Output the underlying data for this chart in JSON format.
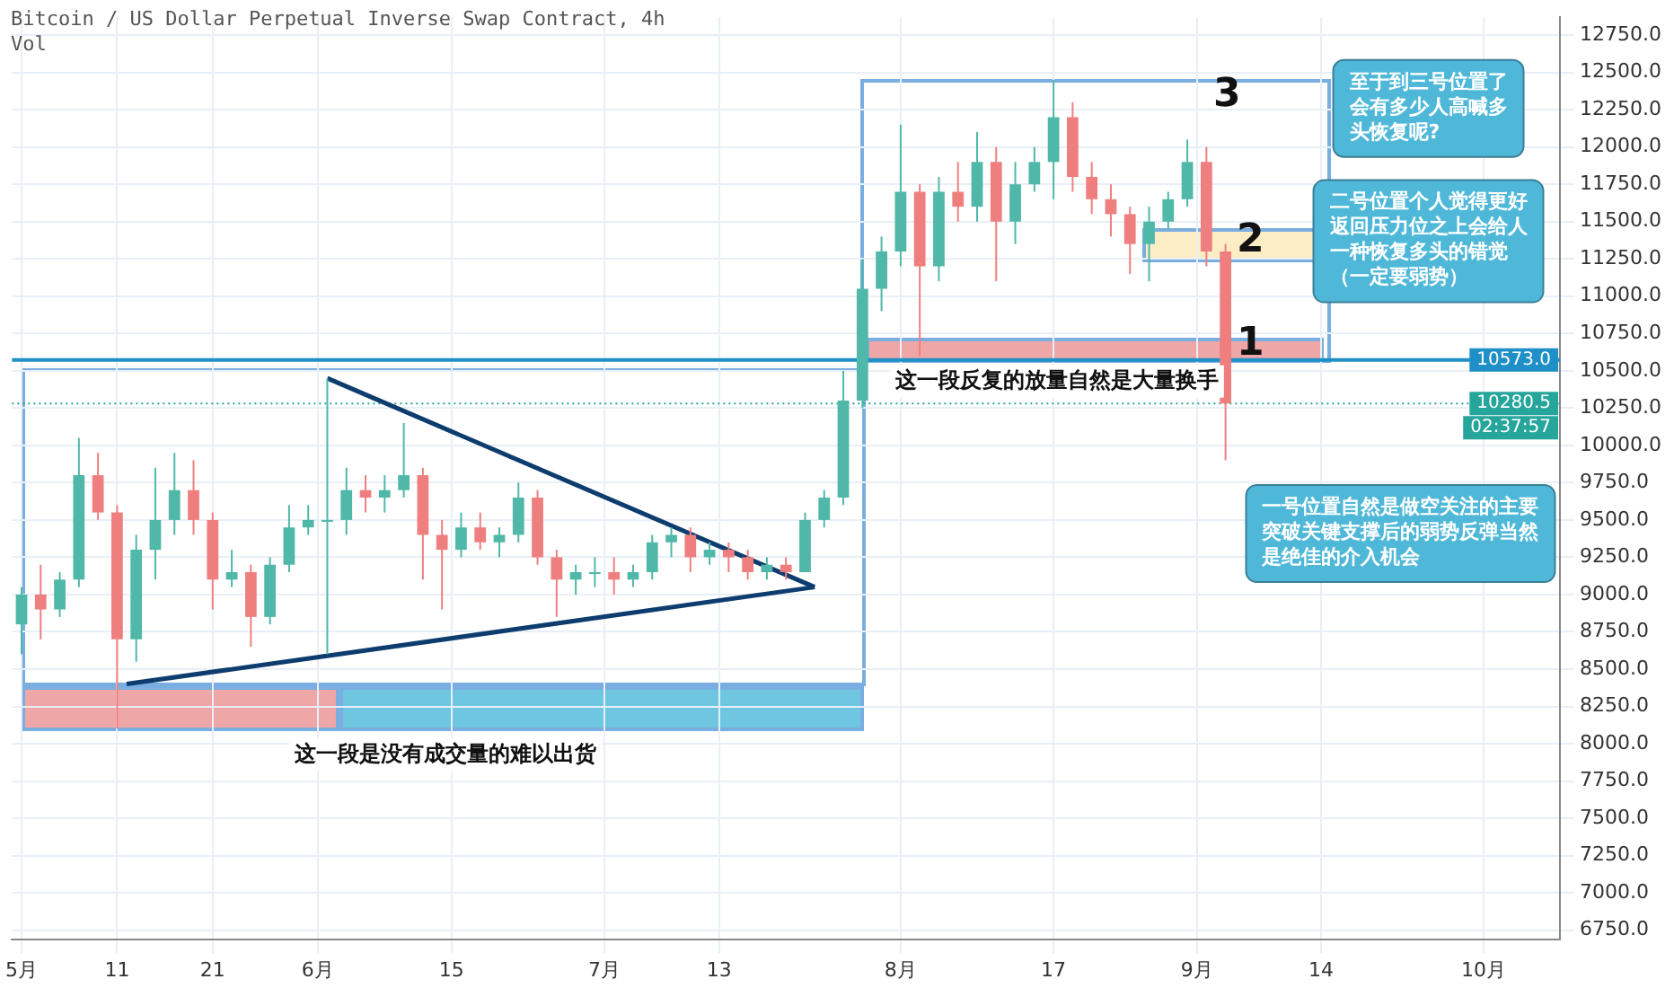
{
  "chart_data": {
    "type": "candlestick",
    "title": "Bitcoin / US Dollar Perpetual Inverse Swap Contract, 4h",
    "x": [
      "--05-01",
      "--05-03",
      "--05-05",
      "--05-07",
      "--05-09",
      "--05-11",
      "--05-13",
      "--05-15",
      "--05-17",
      "--05-19",
      "--05-21",
      "--05-23",
      "--05-25",
      "--05-27",
      "--05-29",
      "--05-31",
      "--06-02",
      "--06-04",
      "--06-06",
      "--06-08",
      "--06-10",
      "--06-12",
      "--06-14",
      "--06-16",
      "--06-18",
      "--06-20",
      "--06-22",
      "--06-24",
      "--06-26",
      "--06-28",
      "--06-30",
      "--07-02",
      "--07-04",
      "--07-06",
      "--07-08",
      "--07-10",
      "--07-12",
      "--07-14",
      "--07-16",
      "--07-18",
      "--07-20",
      "--07-22",
      "--07-24",
      "--07-26",
      "--07-28",
      "--07-30",
      "--08-01",
      "--08-03",
      "--08-05",
      "--08-07",
      "--08-09",
      "--08-11",
      "--08-13",
      "--08-15",
      "--08-17",
      "--08-19",
      "--08-21",
      "--08-23",
      "--08-25",
      "--08-27",
      "--08-29",
      "--08-31",
      "--09-02",
      "--09-04"
    ],
    "ohlc": [
      [
        8800,
        9050,
        8600,
        9000
      ],
      [
        9000,
        9200,
        8700,
        8900
      ],
      [
        8900,
        9150,
        8850,
        9100
      ],
      [
        9100,
        10050,
        9050,
        9800
      ],
      [
        9800,
        9950,
        9500,
        9550
      ],
      [
        9550,
        9600,
        8100,
        8700
      ],
      [
        8700,
        9400,
        8550,
        9300
      ],
      [
        9300,
        9850,
        9100,
        9500
      ],
      [
        9500,
        9950,
        9400,
        9700
      ],
      [
        9700,
        9900,
        9400,
        9500
      ],
      [
        9500,
        9550,
        8900,
        9100
      ],
      [
        9100,
        9300,
        9050,
        9150
      ],
      [
        9150,
        9200,
        8650,
        8850
      ],
      [
        8850,
        9250,
        8800,
        9200
      ],
      [
        9200,
        9600,
        9150,
        9450
      ],
      [
        9450,
        9600,
        9400,
        9500
      ],
      [
        9500,
        10450,
        8600,
        9500
      ],
      [
        9500,
        9850,
        9400,
        9700
      ],
      [
        9700,
        9800,
        9550,
        9650
      ],
      [
        9650,
        9800,
        9550,
        9700
      ],
      [
        9700,
        10150,
        9650,
        9800
      ],
      [
        9800,
        9850,
        9100,
        9400
      ],
      [
        9400,
        9500,
        8900,
        9300
      ],
      [
        9300,
        9550,
        9250,
        9450
      ],
      [
        9450,
        9550,
        9300,
        9350
      ],
      [
        9350,
        9450,
        9250,
        9400
      ],
      [
        9400,
        9750,
        9350,
        9650
      ],
      [
        9650,
        9700,
        9200,
        9250
      ],
      [
        9250,
        9300,
        8850,
        9100
      ],
      [
        9100,
        9200,
        9000,
        9150
      ],
      [
        9150,
        9250,
        9050,
        9150
      ],
      [
        9150,
        9250,
        9000,
        9100
      ],
      [
        9100,
        9200,
        9050,
        9150
      ],
      [
        9150,
        9400,
        9100,
        9350
      ],
      [
        9350,
        9450,
        9250,
        9400
      ],
      [
        9400,
        9450,
        9150,
        9250
      ],
      [
        9250,
        9350,
        9200,
        9300
      ],
      [
        9300,
        9350,
        9150,
        9250
      ],
      [
        9250,
        9300,
        9100,
        9150
      ],
      [
        9150,
        9250,
        9100,
        9200
      ],
      [
        9200,
        9250,
        9100,
        9150
      ],
      [
        9150,
        9550,
        9150,
        9500
      ],
      [
        9500,
        9700,
        9450,
        9650
      ],
      [
        9650,
        10500,
        9600,
        10300
      ],
      [
        10300,
        11250,
        10250,
        11050
      ],
      [
        11050,
        11400,
        10900,
        11300
      ],
      [
        11300,
        12150,
        11200,
        11700
      ],
      [
        11700,
        11750,
        10600,
        11200
      ],
      [
        11200,
        11800,
        11100,
        11700
      ],
      [
        11700,
        11900,
        11500,
        11600
      ],
      [
        11600,
        12100,
        11500,
        11900
      ],
      [
        11900,
        12000,
        11100,
        11500
      ],
      [
        11500,
        11900,
        11350,
        11750
      ],
      [
        11750,
        12000,
        11700,
        11900
      ],
      [
        11900,
        12450,
        11650,
        12200
      ],
      [
        12200,
        12300,
        11700,
        11800
      ],
      [
        11800,
        11900,
        11550,
        11650
      ],
      [
        11650,
        11750,
        11400,
        11550
      ],
      [
        11550,
        11600,
        11150,
        11350
      ],
      [
        11350,
        11600,
        11100,
        11500
      ],
      [
        11500,
        11700,
        11450,
        11650
      ],
      [
        11650,
        12050,
        11600,
        11900
      ],
      [
        11900,
        12000,
        11200,
        11300
      ],
      [
        11300,
        11350,
        9900,
        10280.5
      ]
    ],
    "series": [
      {
        "type": "line",
        "color": "#0d3c6e",
        "x": [
          "--06-02",
          "--07-23"
        ],
        "values": [
          10450,
          9050
        ]
      },
      {
        "type": "line",
        "color": "#0d3c6e",
        "x": [
          "--05-12",
          "--07-23"
        ],
        "values": [
          8400,
          9050
        ]
      }
    ],
    "xlim": [
      "--04-30",
      "--10-09"
    ],
    "xticks": [
      {
        "value": "--05-01",
        "label": "5月"
      },
      {
        "value": "--05-11",
        "label": "11"
      },
      {
        "value": "--05-21",
        "label": "21"
      },
      {
        "value": "--06-01",
        "label": "6月"
      },
      {
        "value": "--06-15",
        "label": "15"
      },
      {
        "value": "--07-01",
        "label": "7月"
      },
      {
        "value": "--07-13",
        "label": "13"
      },
      {
        "value": "--08-01",
        "label": "8月"
      },
      {
        "value": "--08-17",
        "label": "17"
      },
      {
        "value": "--09-01",
        "label": "9月"
      },
      {
        "value": "--09-14",
        "label": "14"
      },
      {
        "value": "--10-01",
        "label": "10月"
      }
    ],
    "ylim": [
      6690,
      12870
    ],
    "yticks": [
      {
        "value": 6750,
        "label": "6750.0"
      },
      {
        "value": 7000,
        "label": "7000.0"
      },
      {
        "value": 7250,
        "label": "7250.0"
      },
      {
        "value": 7500,
        "label": "7500.0"
      },
      {
        "value": 7750,
        "label": "7750.0"
      },
      {
        "value": 8000,
        "label": "8000.0"
      },
      {
        "value": 8250,
        "label": "8250.0"
      },
      {
        "value": 8500,
        "label": "8500.0"
      },
      {
        "value": 8750,
        "label": "8750.0"
      },
      {
        "value": 9000,
        "label": "9000.0"
      },
      {
        "value": 9250,
        "label": "9250.0"
      },
      {
        "value": 9500,
        "label": "9500.0"
      },
      {
        "value": 9750,
        "label": "9750.0"
      },
      {
        "value": 10000,
        "label": "10000.0"
      },
      {
        "value": 10250,
        "label": "10250.0"
      },
      {
        "value": 10500,
        "label": "10500.0"
      },
      {
        "value": 10750,
        "label": "10750.0"
      },
      {
        "value": 11000,
        "label": "11000.0"
      },
      {
        "value": 11250,
        "label": "11250.0"
      },
      {
        "value": 11500,
        "label": "11500.0"
      },
      {
        "value": 11750,
        "label": "11750.0"
      },
      {
        "value": 12000,
        "label": "12000.0"
      },
      {
        "value": 12250,
        "label": "12250.0"
      },
      {
        "value": 12500,
        "label": "12500.0"
      },
      {
        "value": 12750,
        "label": "12750.0"
      }
    ],
    "ref_lines": [
      {
        "axis": "y",
        "value": 10573,
        "label": "10573.0",
        "color": "#1e8fc7"
      },
      {
        "axis": "y",
        "value": 10280.5,
        "label": "10280.5",
        "color": "#26a69a",
        "line_style": "dotted"
      }
    ],
    "annotations": [
      "Vol",
      "02:37:57",
      "这一段是没有成交量的难以出货",
      "这一段反复的放量自然是大量换手",
      "1",
      "2",
      "3",
      "至于到三号位置了会有多少人高喊多头恢复呢?",
      "二号位置个人觉得更好返回压力位之上会给人一种恢复多头的错觉（一定要弱势）",
      "一号位置自然是做空关注的主要突破关键支撑后的弱势反弹当然是绝佳的介入机会"
    ],
    "grid": true,
    "legend": false
  }
}
